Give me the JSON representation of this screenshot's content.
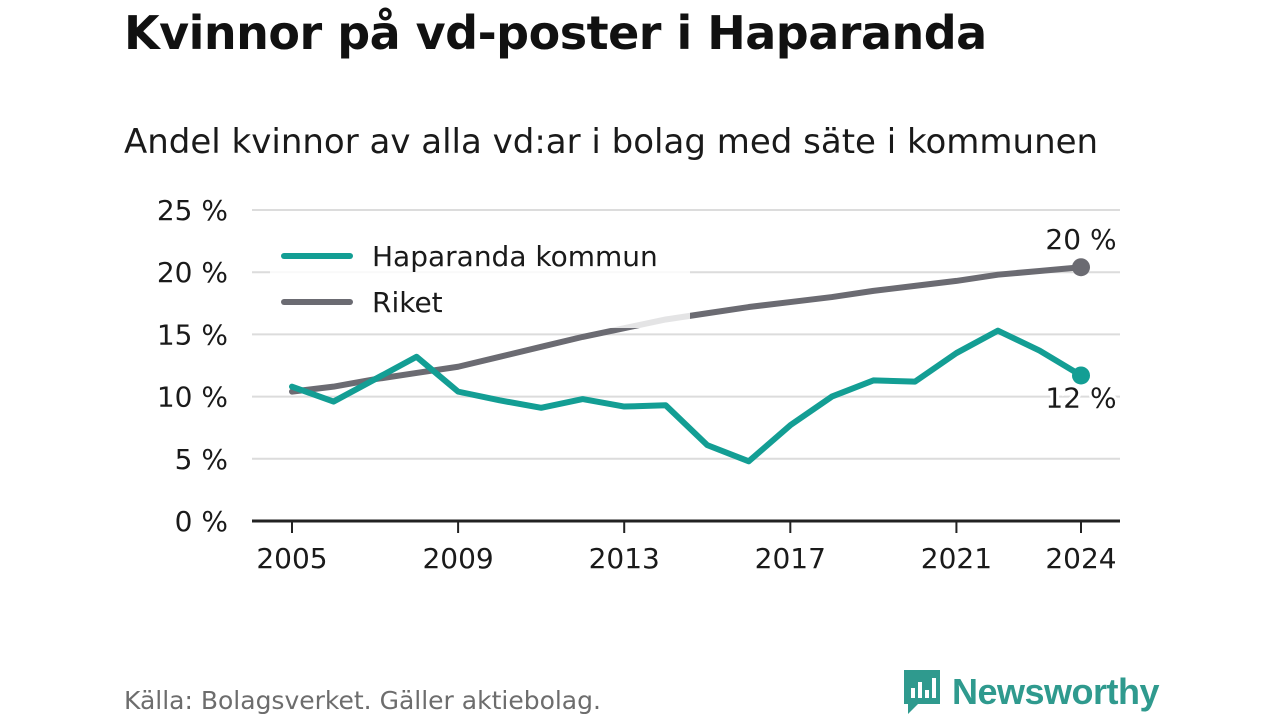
{
  "title": "Kvinnor på vd-poster i Haparanda",
  "subtitle": "Andel kvinnor av alla vd:ar i bolag med säte i kommunen",
  "source": "Källa: Bolagsverket. Gäller aktiebolag.",
  "brand": "Newsworthy",
  "colors": {
    "haparanda": "#139e94",
    "riket": "#6b6b72",
    "grid": "#dcdcdc",
    "axis": "#222222"
  },
  "chart_data": {
    "type": "line",
    "title": "Kvinnor på vd-poster i Haparanda",
    "subtitle": "Andel kvinnor av alla vd:ar i bolag med säte i kommunen",
    "xlabel": "",
    "ylabel": "",
    "x": [
      2005,
      2006,
      2007,
      2008,
      2009,
      2010,
      2011,
      2012,
      2013,
      2014,
      2015,
      2016,
      2017,
      2018,
      2019,
      2020,
      2021,
      2022,
      2023,
      2024
    ],
    "x_ticks": [
      2005,
      2009,
      2013,
      2017,
      2021,
      2024
    ],
    "x_tick_labels": [
      "2005",
      "2009",
      "2013",
      "2017",
      "2021",
      "2024"
    ],
    "ylim": [
      0,
      25
    ],
    "y_ticks": [
      0,
      5,
      10,
      15,
      20,
      25
    ],
    "y_tick_labels": [
      "0 %",
      "5 %",
      "10 %",
      "15 %",
      "20 %",
      "25 %"
    ],
    "grid": true,
    "legend_position": "top-left",
    "series": [
      {
        "name": "Haparanda kommun",
        "color": "#139e94",
        "values": [
          10.8,
          9.6,
          11.4,
          13.2,
          10.4,
          9.7,
          9.1,
          9.8,
          9.2,
          9.3,
          6.1,
          4.8,
          7.7,
          10.0,
          11.3,
          11.2,
          13.5,
          15.3,
          13.7,
          11.7
        ],
        "end_label": "12 %"
      },
      {
        "name": "Riket",
        "color": "#6b6b72",
        "values": [
          10.4,
          10.8,
          11.4,
          11.9,
          12.4,
          13.2,
          14.0,
          14.8,
          15.5,
          16.2,
          16.7,
          17.2,
          17.6,
          18.0,
          18.5,
          18.9,
          19.3,
          19.8,
          20.1,
          20.4
        ],
        "end_label": "20 %"
      }
    ]
  }
}
